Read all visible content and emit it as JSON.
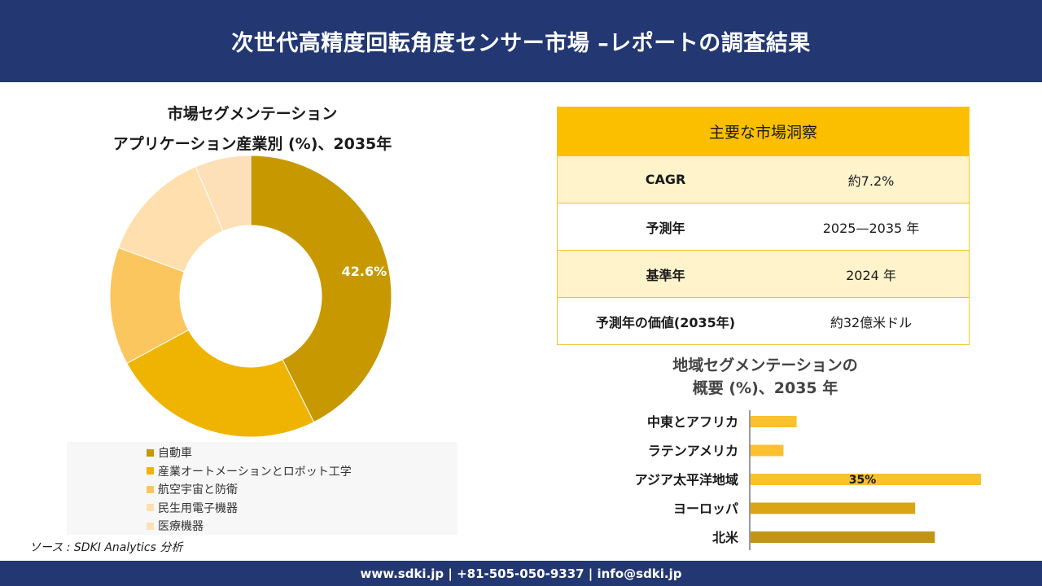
{
  "header": {
    "title": "次世代高精度回転角度センサー市場 –レポートの調査結果"
  },
  "footer": {
    "contact": "www.sdki.jp | +81-505-050-9337 | info@sdki.jp"
  },
  "source": "ソース : SDKI Analytics 分析",
  "insights": {
    "title": "主要な市場洞察",
    "rows": [
      {
        "key": "CAGR",
        "value": "約7.2%"
      },
      {
        "key": "予測年",
        "value": "2025—2035 年"
      },
      {
        "key": "基準年",
        "value": "2024 年"
      },
      {
        "key": "予測年の価値(2035年)",
        "value": "約32億米ドル"
      }
    ]
  },
  "chart_data": [
    {
      "type": "pie",
      "title": "市場セグメンテーション",
      "subtitle": "アプリケーション産業別 (%)、2035年",
      "categories": [
        "自動車",
        "産業オートメーションとロボット工学",
        "航空宇宙と防衛",
        "民生用電子機器",
        "医療機器"
      ],
      "values": [
        42.6,
        24.5,
        13.5,
        13.0,
        6.4
      ],
      "colors": [
        "#c79800",
        "#efb401",
        "#fcc65f",
        "#ffdfae",
        "#fde0b7"
      ],
      "data_labels": [
        "42.6%",
        "",
        "",
        "",
        ""
      ],
      "legend": "bottom"
    },
    {
      "type": "bar",
      "orientation": "horizontal",
      "title": "地域セグメンテーションの",
      "subtitle": "概要 (%)、2035 年",
      "categories": [
        "中東とアフリカ",
        "ラテンアメリカ",
        "アジア太平洋地域",
        "ヨーロッパ",
        "北米"
      ],
      "values": [
        7,
        5,
        35,
        25,
        28
      ],
      "colors": [
        "#fbc02d",
        "#fbc02d",
        "#fbc02d",
        "#d9a514",
        "#c09515"
      ],
      "data_labels": [
        "",
        "",
        "35%",
        "",
        ""
      ],
      "xlim": [
        0,
        35
      ]
    }
  ]
}
